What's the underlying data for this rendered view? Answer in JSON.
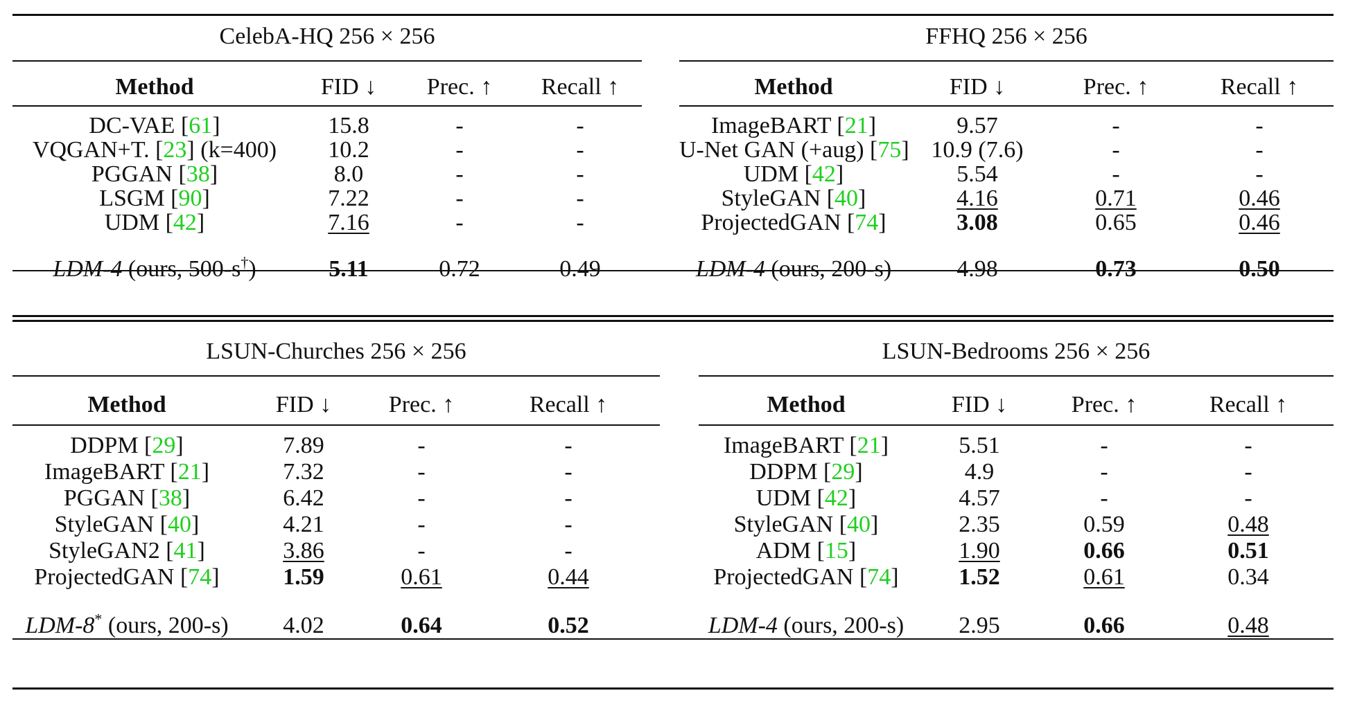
{
  "arrows": {
    "down": "↓",
    "up": "↑"
  },
  "panels": [
    {
      "id": "celeba",
      "title": "CelebA-HQ 256 × 256",
      "headers": [
        "Method",
        "FID ↓",
        "Prec. ↑",
        "Recall ↑"
      ],
      "rows": [
        {
          "method": "DC-VAE",
          "cite": "61",
          "extra": "",
          "fid": "15.8",
          "prec": "-",
          "recall": "-"
        },
        {
          "method": "VQGAN+T.",
          "cite": "23",
          "extra": " (k=400)",
          "fid": "10.2",
          "prec": "-",
          "recall": "-"
        },
        {
          "method": "PGGAN",
          "cite": "38",
          "extra": "",
          "fid": "8.0",
          "prec": "-",
          "recall": "-"
        },
        {
          "method": "LSGM",
          "cite": "90",
          "extra": "",
          "fid": "7.22",
          "prec": "-",
          "recall": "-"
        },
        {
          "method": "UDM",
          "cite": "42",
          "extra": "",
          "fid": "7.16",
          "fid_style": "u",
          "prec": "-",
          "recall": "-"
        }
      ],
      "ours": {
        "name": "LDM-4",
        "paren_open": " (ours, 500-s",
        "sup": "†",
        "paren_close": ")",
        "fid": "5.11",
        "fid_style": "b",
        "prec": "0.72",
        "recall": "0.49"
      }
    },
    {
      "id": "ffhq",
      "title": "FFHQ 256 × 256",
      "headers": [
        "Method",
        "FID ↓",
        "Prec. ↑",
        "Recall ↑"
      ],
      "rows": [
        {
          "method": "ImageBART",
          "cite": "21",
          "extra": "",
          "fid": "9.57",
          "prec": "-",
          "recall": "-"
        },
        {
          "method": "U-Net GAN (+aug)",
          "cite": "75",
          "extra": "",
          "fid": "10.9 (7.6)",
          "prec": "-",
          "recall": "-"
        },
        {
          "method": "UDM",
          "cite": "42",
          "extra": "",
          "fid": "5.54",
          "prec": "-",
          "recall": "-"
        },
        {
          "method": "StyleGAN",
          "cite": "40",
          "extra": "",
          "fid": "4.16",
          "fid_style": "u",
          "prec": "0.71",
          "prec_style": "u",
          "recall": "0.46",
          "recall_style": "u"
        },
        {
          "method": "ProjectedGAN",
          "cite": "74",
          "extra": "",
          "fid": "3.08",
          "fid_style": "b",
          "prec": "0.65",
          "recall": "0.46",
          "recall_style": "u"
        }
      ],
      "ours": {
        "name": "LDM-4",
        "paren_open": " (ours, 200-s",
        "sup": "",
        "paren_close": ")",
        "fid": "4.98",
        "prec": "0.73",
        "prec_style": "b",
        "recall": "0.50",
        "recall_style": "b"
      }
    },
    {
      "id": "churches",
      "title": "LSUN-Churches 256 × 256",
      "headers": [
        "Method",
        "FID ↓",
        "Prec. ↑",
        "Recall ↑"
      ],
      "rows": [
        {
          "method": "DDPM",
          "cite": "29",
          "extra": "",
          "fid": "7.89",
          "prec": "-",
          "recall": "-"
        },
        {
          "method": "ImageBART",
          "cite": "21",
          "extra": "",
          "fid": "7.32",
          "prec": "-",
          "recall": "-"
        },
        {
          "method": "PGGAN",
          "cite": "38",
          "extra": "",
          "fid": "6.42",
          "prec": "-",
          "recall": "-"
        },
        {
          "method": "StyleGAN",
          "cite": "40",
          "extra": "",
          "fid": "4.21",
          "prec": "-",
          "recall": "-"
        },
        {
          "method": "StyleGAN2",
          "cite": "41",
          "extra": "",
          "fid": "3.86",
          "fid_style": "u",
          "prec": "-",
          "recall": "-"
        },
        {
          "method": "ProjectedGAN",
          "cite": "74",
          "extra": "",
          "fid": "1.59",
          "fid_style": "b",
          "prec": "0.61",
          "prec_style": "u",
          "recall": "0.44",
          "recall_style": "u"
        }
      ],
      "ours": {
        "name": "LDM-8",
        "paren_open": " (ours, 200-s",
        "sup": "*",
        "sup_before_paren": true,
        "paren_close": ")",
        "fid": "4.02",
        "prec": "0.64",
        "prec_style": "b",
        "recall": "0.52",
        "recall_style": "b"
      }
    },
    {
      "id": "bedrooms",
      "title": "LSUN-Bedrooms 256 × 256",
      "headers": [
        "Method",
        "FID ↓",
        "Prec. ↑",
        "Recall ↑"
      ],
      "rows": [
        {
          "method": "ImageBART",
          "cite": "21",
          "extra": "",
          "fid": "5.51",
          "prec": "-",
          "recall": "-"
        },
        {
          "method": "DDPM",
          "cite": "29",
          "extra": "",
          "fid": "4.9",
          "prec": "-",
          "recall": "-"
        },
        {
          "method": "UDM",
          "cite": "42",
          "extra": "",
          "fid": "4.57",
          "prec": "-",
          "recall": "-"
        },
        {
          "method": "StyleGAN",
          "cite": "40",
          "extra": "",
          "fid": "2.35",
          "prec": "0.59",
          "recall": "0.48",
          "recall_style": "u"
        },
        {
          "method": "ADM",
          "cite": "15",
          "extra": "",
          "fid": "1.90",
          "fid_style": "u",
          "prec": "0.66",
          "prec_style": "b",
          "recall": "0.51",
          "recall_style": "b"
        },
        {
          "method": "ProjectedGAN",
          "cite": "74",
          "extra": "",
          "fid": "1.52",
          "fid_style": "b",
          "prec": "0.61",
          "prec_style": "u",
          "recall": "0.34"
        }
      ],
      "ours": {
        "name": "LDM-4",
        "paren_open": " (ours, 200-s",
        "sup": "",
        "paren_close": ")",
        "fid": "2.95",
        "prec": "0.66",
        "prec_style": "b",
        "recall": "0.48",
        "recall_style": "u"
      }
    }
  ]
}
